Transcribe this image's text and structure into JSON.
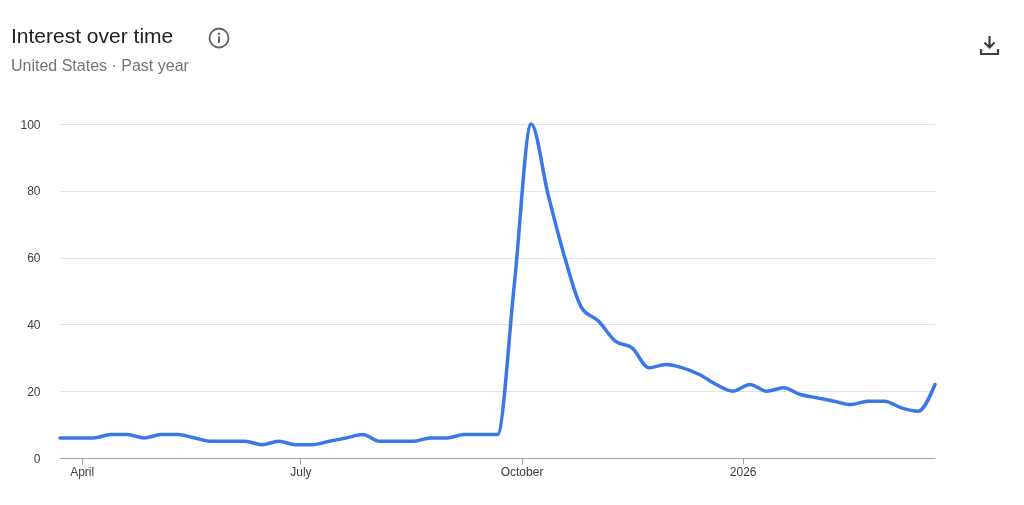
{
  "chart_data": {
    "type": "line",
    "title": "Interest over time",
    "subtitle": "United States · Past year",
    "x": [
      "2025-03-23",
      "2025-03-30",
      "2025-04-06",
      "2025-04-13",
      "2025-04-20",
      "2025-04-27",
      "2025-05-04",
      "2025-05-11",
      "2025-05-18",
      "2025-05-25",
      "2025-06-01",
      "2025-06-08",
      "2025-06-15",
      "2025-06-22",
      "2025-06-29",
      "2025-07-06",
      "2025-07-13",
      "2025-07-20",
      "2025-07-27",
      "2025-08-03",
      "2025-08-10",
      "2025-08-17",
      "2025-08-24",
      "2025-08-31",
      "2025-09-07",
      "2025-09-14",
      "2025-09-21",
      "2025-09-28",
      "2025-10-05",
      "2025-10-12",
      "2025-10-19",
      "2025-10-26",
      "2025-11-02",
      "2025-11-09",
      "2025-11-16",
      "2025-11-23",
      "2025-11-30",
      "2025-12-07",
      "2025-12-14",
      "2025-12-21",
      "2025-12-28",
      "2026-01-04",
      "2026-01-11",
      "2026-01-18",
      "2026-01-25",
      "2026-02-01",
      "2026-02-08",
      "2026-02-15",
      "2026-02-22",
      "2026-03-01",
      "2026-03-08",
      "2026-03-15",
      "2026-03-22"
    ],
    "series": [
      {
        "color": "#3b78e7",
        "values": [
          6,
          6,
          6,
          7,
          7,
          6,
          7,
          7,
          6,
          5,
          5,
          5,
          4,
          5,
          4,
          4,
          5,
          6,
          7,
          5,
          5,
          5,
          6,
          6,
          7,
          7,
          7,
          52,
          100,
          79,
          60,
          45,
          41,
          35,
          33,
          27,
          28,
          27,
          25,
          22,
          20,
          22,
          20,
          21,
          19,
          18,
          17,
          16,
          17,
          17,
          15,
          14,
          22
        ]
      }
    ],
    "xlim": [
      "2025-03-23",
      "2026-03-22"
    ],
    "xticks": [
      {
        "value": "2025-04-01",
        "label": "April"
      },
      {
        "value": "2025-07-01",
        "label": "July"
      },
      {
        "value": "2025-10-01",
        "label": "October"
      },
      {
        "value": "2026-01-01",
        "label": "2026"
      }
    ],
    "ylim": [
      0,
      100
    ],
    "yticks": [
      0,
      20,
      40,
      60,
      80,
      100
    ],
    "grid": "y",
    "line_style": "solid"
  }
}
